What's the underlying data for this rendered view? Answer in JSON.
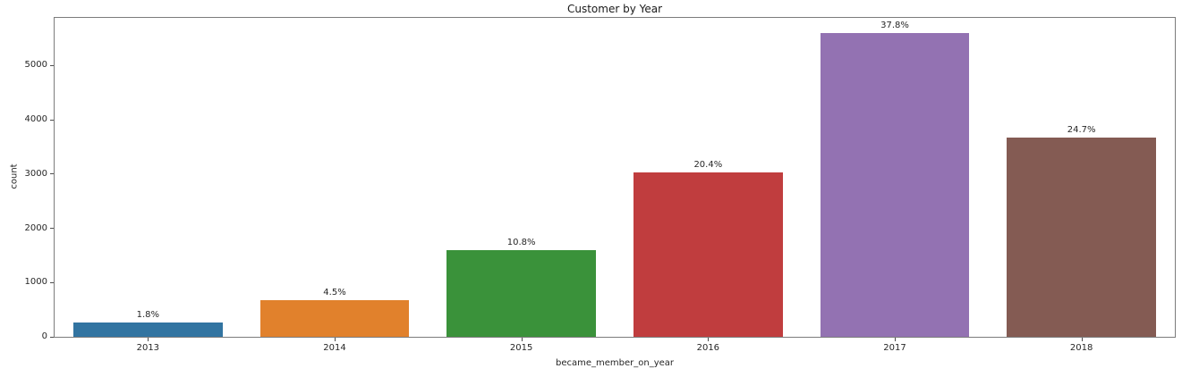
{
  "chart_data": {
    "type": "bar",
    "title": "Customer by Year",
    "xlabel": "became_member_on_year",
    "ylabel": "count",
    "categories": [
      "2013",
      "2014",
      "2015",
      "2016",
      "2017",
      "2018"
    ],
    "values": [
      267,
      670,
      1597,
      3024,
      5599,
      3668
    ],
    "bar_labels": [
      "1.8%",
      "4.5%",
      "10.8%",
      "20.4%",
      "37.8%",
      "24.7%"
    ],
    "bar_colors": [
      "#3274a1",
      "#e1812c",
      "#3a923a",
      "#c03d3e",
      "#9372b2",
      "#845b53"
    ],
    "y_ticks": [
      0,
      1000,
      2000,
      3000,
      4000,
      5000
    ],
    "ylim": [
      0,
      5880
    ],
    "bar_width_fraction": 0.8,
    "grid": false,
    "legend": null,
    "background_color": "#ffffff",
    "spine_color": "#7c7c7c",
    "text_color": "#262626"
  }
}
